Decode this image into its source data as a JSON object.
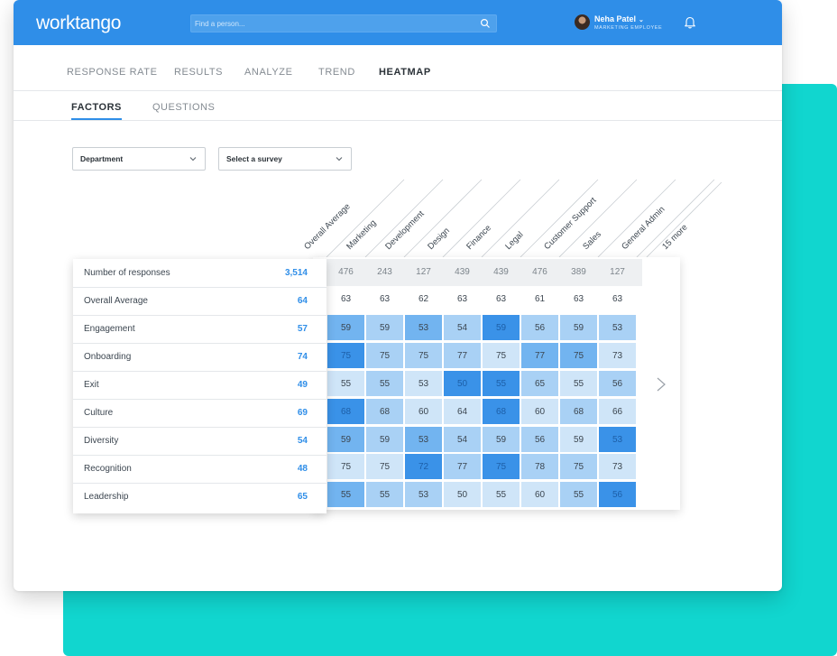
{
  "app": {
    "logo": "worktango"
  },
  "search": {
    "placeholder": "Find a person..."
  },
  "user": {
    "name": "Neha Patel",
    "role": "MARKETING EMPLOYEE"
  },
  "nav": {
    "items": [
      "RESPONSE RATE",
      "RESULTS",
      "ANALYZE",
      "TREND",
      "HEATMAP"
    ],
    "active": "HEATMAP"
  },
  "subnav": {
    "items": [
      "FACTORS",
      "QUESTIONS"
    ],
    "active": "FACTORS"
  },
  "filters": {
    "department": "Department",
    "survey": "Select a survey"
  },
  "columns": [
    "Overall Average",
    "Marketing",
    "Development",
    "Design",
    "Finance",
    "Legal",
    "Customer Support",
    "Sales",
    "General Admin",
    "15 more"
  ],
  "rows": [
    {
      "label": "Number of responses",
      "total": "3,514",
      "values": [
        "476",
        "243",
        "127",
        "439",
        "439",
        "476",
        "389",
        "127"
      ]
    },
    {
      "label": "Overall Average",
      "total": "64",
      "values": [
        "63",
        "63",
        "62",
        "63",
        "63",
        "61",
        "63",
        "63"
      ]
    },
    {
      "label": "Engagement",
      "total": "57",
      "values": [
        "59",
        "59",
        "53",
        "54",
        "59",
        "56",
        "59",
        "53"
      ]
    },
    {
      "label": "Onboarding",
      "total": "74",
      "values": [
        "75",
        "75",
        "75",
        "77",
        "75",
        "77",
        "75",
        "73"
      ]
    },
    {
      "label": "Exit",
      "total": "49",
      "values": [
        "55",
        "55",
        "53",
        "50",
        "55",
        "65",
        "55",
        "56"
      ]
    },
    {
      "label": "Culture",
      "total": "69",
      "values": [
        "68",
        "68",
        "60",
        "64",
        "68",
        "60",
        "68",
        "66"
      ]
    },
    {
      "label": "Diversity",
      "total": "54",
      "values": [
        "59",
        "59",
        "53",
        "54",
        "59",
        "56",
        "59",
        "53"
      ]
    },
    {
      "label": "Recognition",
      "total": "48",
      "values": [
        "75",
        "75",
        "72",
        "77",
        "75",
        "78",
        "75",
        "73"
      ]
    },
    {
      "label": "Leadership",
      "total": "65",
      "values": [
        "55",
        "55",
        "53",
        "50",
        "55",
        "60",
        "55",
        "56"
      ]
    }
  ],
  "heat_levels": [
    [
      2,
      1,
      2,
      1,
      3,
      1,
      1,
      1
    ],
    [
      3,
      1,
      1,
      1,
      0,
      2,
      2,
      0
    ],
    [
      0,
      1,
      0,
      3,
      3,
      1,
      0,
      1
    ],
    [
      3,
      1,
      0,
      0,
      3,
      0,
      1,
      0
    ],
    [
      2,
      1,
      2,
      1,
      1,
      1,
      0,
      3
    ],
    [
      0,
      0,
      3,
      1,
      3,
      1,
      1,
      0
    ],
    [
      2,
      1,
      1,
      0,
      0,
      0,
      1,
      3
    ]
  ],
  "colors": {
    "brand_blue": "#2f8ee8",
    "teal": "#11d6cf",
    "heat": [
      "#cfe5f8",
      "#a9d1f5",
      "#72b4f0",
      "#3a92e8"
    ]
  }
}
